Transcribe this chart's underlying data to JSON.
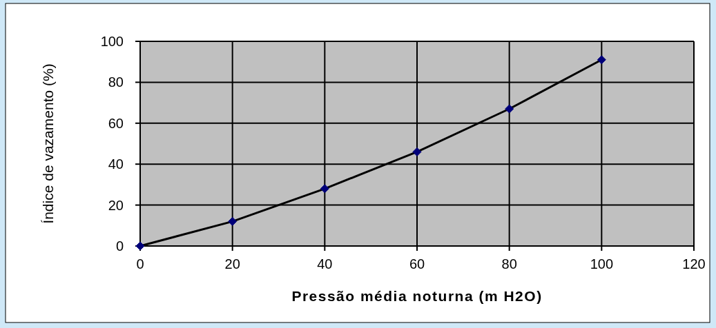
{
  "chart_data": {
    "type": "line",
    "xlabel": "Pressão média noturna (m H2O)",
    "ylabel": "Índice de vazamento (%)",
    "x": [
      0,
      20,
      40,
      60,
      80,
      100
    ],
    "series": [
      {
        "color": "#000000",
        "values": [
          0,
          12,
          28,
          46,
          67,
          91
        ]
      }
    ],
    "xlim": [
      0,
      120
    ],
    "xticks": [
      0,
      20,
      40,
      60,
      80,
      100,
      120
    ],
    "ylim": [
      0,
      100
    ],
    "yticks": [
      0,
      20,
      40,
      60,
      80,
      100
    ],
    "grid": true,
    "marker": "diamond",
    "line_style": "solid"
  }
}
